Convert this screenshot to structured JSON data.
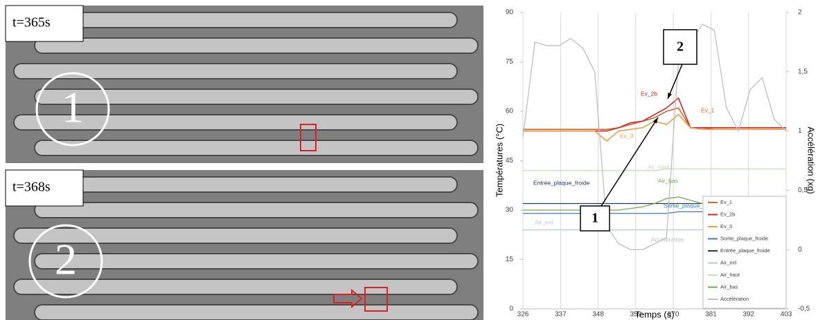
{
  "photos": [
    {
      "label": "t=365s",
      "marker": "1"
    },
    {
      "label": "t=368s",
      "marker": "2"
    }
  ],
  "chart_data": {
    "type": "line",
    "y_label": "Températures (°C)",
    "y2_label": "Accélération (xg)",
    "x_label": "Temps (s)",
    "x": [
      326,
      329.5,
      333,
      336.5,
      340,
      343.5,
      347,
      350.5,
      354,
      357.5,
      361,
      364.5,
      368,
      371.5,
      375,
      378.5,
      382,
      385.5,
      389,
      392.5,
      396,
      399.5,
      403
    ],
    "xlim": [
      326,
      403
    ],
    "xticks": [
      326,
      337,
      348,
      359,
      370,
      381,
      392,
      403
    ],
    "ylim": [
      0,
      90
    ],
    "yticks": [
      0,
      15,
      30,
      45,
      60,
      75,
      90
    ],
    "y2lim": [
      -0.5,
      2
    ],
    "y2ticks": [
      {
        "value": -0.5,
        "label": "-0,5"
      },
      0,
      {
        "value": 0.5,
        "label": "0,5"
      },
      1,
      {
        "value": 1.5,
        "label": "1,5"
      },
      2
    ],
    "grid": "x",
    "legend": "lower right",
    "annotations": [
      "1",
      "2"
    ],
    "series": [
      {
        "name": "Ev_1",
        "color": "#d9662a",
        "values": [
          54.5,
          54.5,
          54.5,
          54.5,
          54.5,
          54.5,
          54.5,
          54.5,
          55,
          56,
          57,
          58,
          60,
          61,
          55,
          55,
          54.5,
          54.5,
          54.5,
          54.5,
          54.5,
          54.5,
          54.5
        ]
      },
      {
        "name": "Ev_2b",
        "color": "#e02020",
        "values": [
          54,
          54,
          54,
          54,
          54,
          54,
          54,
          54,
          55,
          56.5,
          57,
          59,
          61,
          64,
          55,
          55,
          55,
          55,
          55,
          55,
          55,
          55,
          55
        ]
      },
      {
        "name": "Ev_3",
        "color": "#f0a040",
        "values": [
          54,
          54,
          54,
          54,
          54,
          54,
          54,
          51,
          54,
          54.5,
          55,
          57,
          56,
          59,
          55,
          54.5,
          54.5,
          54.5,
          54.5,
          54.5,
          54.5,
          54.5,
          54.5
        ]
      },
      {
        "name": "Sortie_plaque_froide",
        "color": "#3a7fc0",
        "values": [
          29,
          29,
          29,
          29,
          29,
          29,
          29,
          29,
          29,
          29,
          29,
          29,
          29,
          29.5,
          29.5,
          29.5,
          29.5,
          29.5,
          29.5,
          29.5,
          29.5,
          29.5,
          29.5
        ]
      },
      {
        "name": "Entrée_plaque_froide",
        "color": "#1f3864",
        "values": [
          32,
          32,
          32,
          32,
          32,
          32,
          32,
          32,
          32,
          32,
          32,
          32,
          32,
          32,
          32,
          32,
          32,
          32,
          32,
          32,
          32,
          32,
          32
        ]
      },
      {
        "name": "Air_ext",
        "color": "#b4c7e7",
        "values": [
          24,
          24,
          24,
          24,
          24,
          24,
          24,
          24,
          24,
          24,
          24,
          24,
          24,
          24,
          24,
          24,
          24,
          24,
          24,
          24,
          24,
          24,
          24
        ]
      },
      {
        "name": "Air_haut",
        "color": "#c5e0b4",
        "values": [
          42,
          42,
          42,
          42,
          42,
          42,
          42,
          42,
          42,
          42,
          42,
          42,
          42.5,
          42.5,
          42.5,
          42.5,
          42.5,
          42.5,
          42.5,
          42.5,
          42.5,
          42.5,
          42.5
        ]
      },
      {
        "name": "Air_bas",
        "color": "#70ad47",
        "values": [
          30,
          30,
          30,
          30,
          30,
          30,
          30,
          30,
          30,
          30.5,
          31,
          32,
          33.5,
          34,
          33,
          32,
          31,
          30.5,
          30,
          30,
          30,
          30,
          30
        ]
      },
      {
        "name": "Accélération",
        "color": "#bfbfbf",
        "axis": "y2",
        "values": [
          0.95,
          1.75,
          1.72,
          1.72,
          1.78,
          1.7,
          1.5,
          0.2,
          0.05,
          0,
          0,
          0.05,
          0.1,
          1.6,
          1.75,
          1.9,
          1.85,
          1.2,
          1,
          1.35,
          1.45,
          1.1,
          1
        ]
      }
    ]
  }
}
